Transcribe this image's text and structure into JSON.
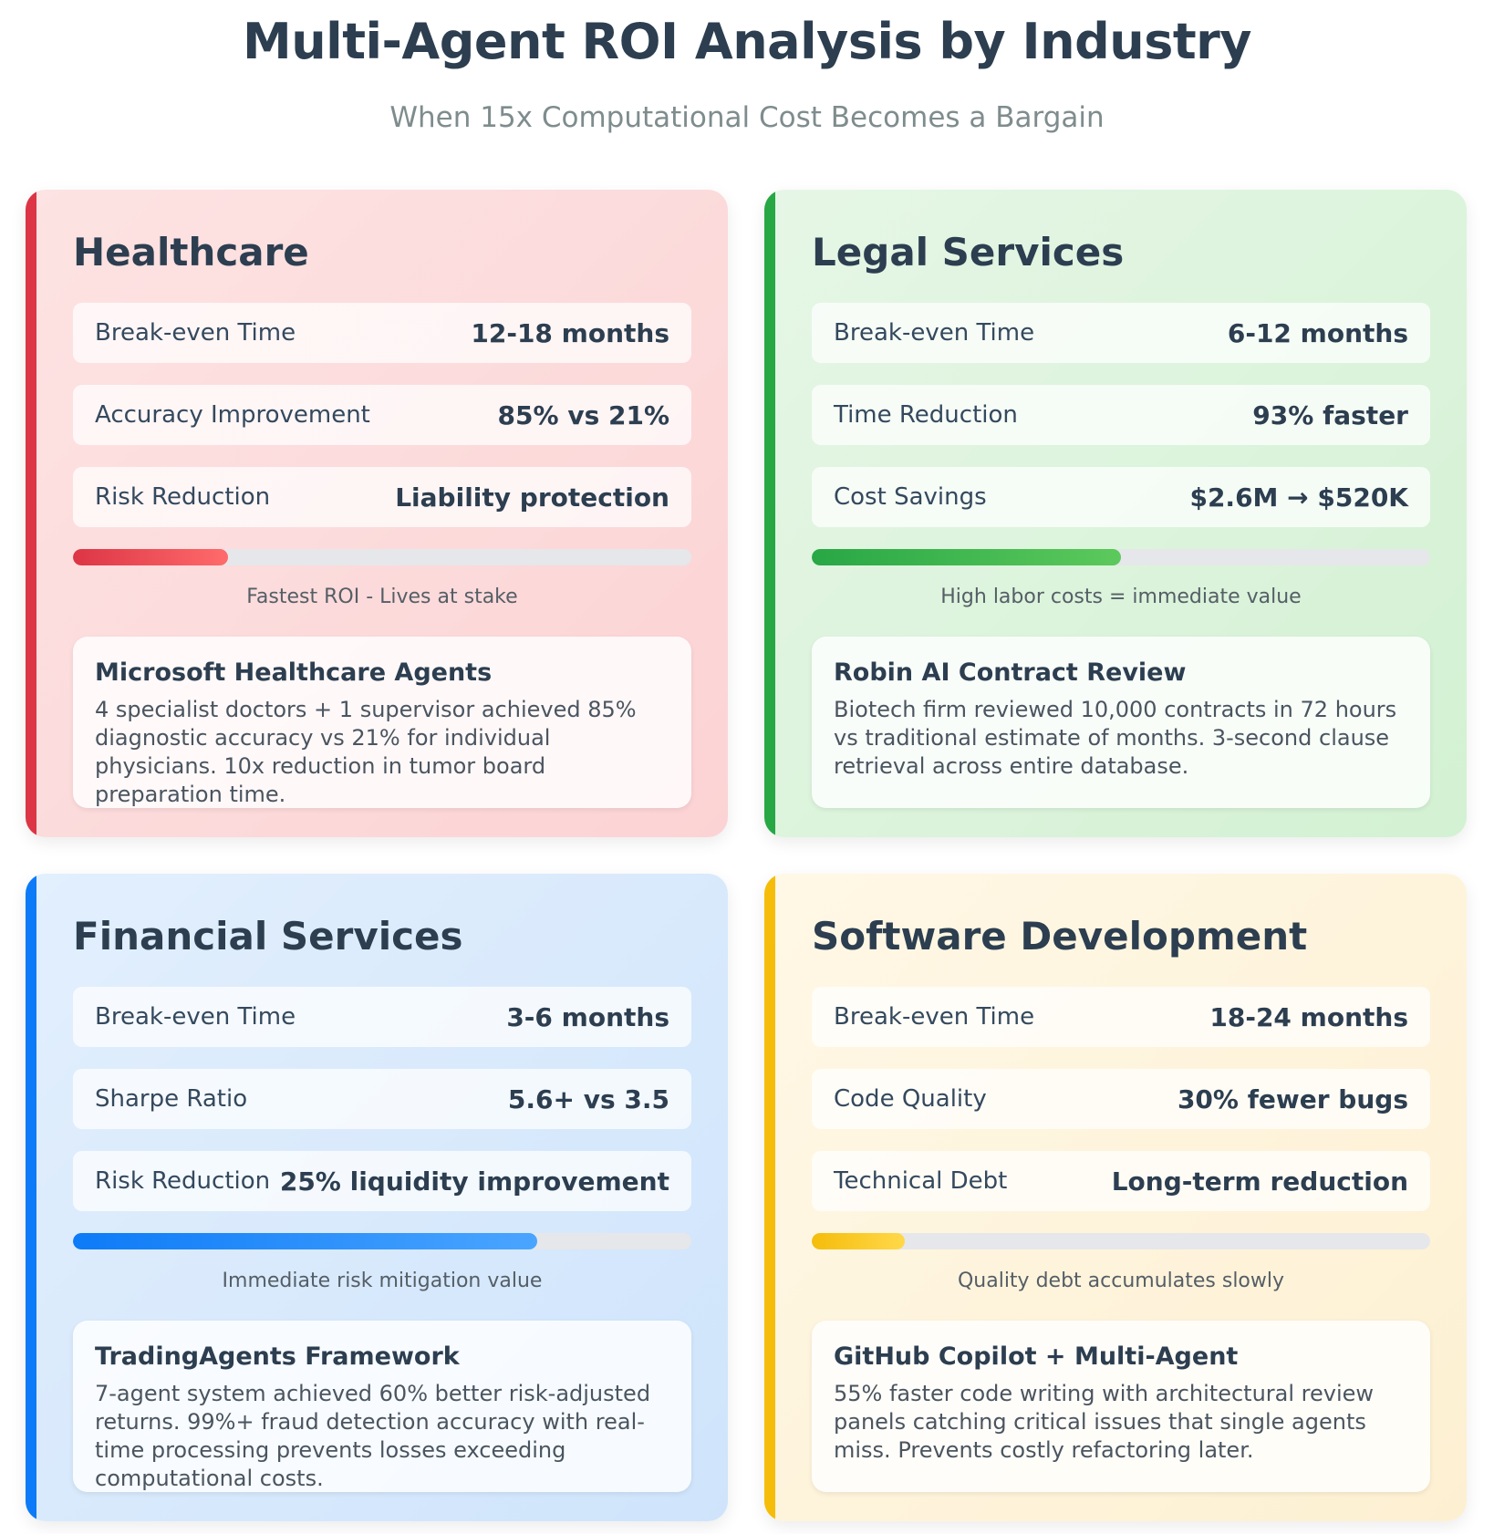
{
  "header": {
    "title": "Multi-Agent ROI Analysis by Industry",
    "subtitle": "When 15x Computational Cost Becomes a Bargain"
  },
  "cards": [
    {
      "id": "healthcare",
      "title": "Healthcare",
      "accent_color": "#dc3545",
      "metrics": [
        {
          "label": "Break-even Time",
          "value": "12-18 months"
        },
        {
          "label": "Accuracy Improvement",
          "value": "85% vs 21%"
        },
        {
          "label": "Risk Reduction",
          "value": "Liability protection"
        }
      ],
      "progress_percent": 25,
      "progress_caption": "Fastest ROI - Lives at stake",
      "case_title": "Microsoft Healthcare Agents",
      "case_text": "4 specialist doctors + 1 supervisor achieved 85% diagnostic accuracy vs 21% for individual physicians. 10x reduction in tumor board preparation time."
    },
    {
      "id": "legal",
      "title": "Legal Services",
      "accent_color": "#28a745",
      "metrics": [
        {
          "label": "Break-even Time",
          "value": "6-12 months"
        },
        {
          "label": "Time Reduction",
          "value": "93% faster"
        },
        {
          "label": "Cost Savings",
          "value": "$2.6M → $520K"
        }
      ],
      "progress_percent": 50,
      "progress_caption": "High labor costs = immediate value",
      "case_title": "Robin AI Contract Review",
      "case_text": "Biotech firm reviewed 10,000 contracts in 72 hours vs traditional estimate of months. 3-second clause retrieval across entire database."
    },
    {
      "id": "financial",
      "title": "Financial Services",
      "accent_color": "#0d7bf7",
      "metrics": [
        {
          "label": "Break-even Time",
          "value": "3-6 months"
        },
        {
          "label": "Sharpe Ratio",
          "value": "5.6+ vs 3.5"
        },
        {
          "label": "Risk Reduction",
          "value": "25% liquidity improvement"
        }
      ],
      "progress_percent": 75,
      "progress_caption": "Immediate risk mitigation value",
      "case_title": "TradingAgents Framework",
      "case_text": "7-agent system achieved 60% better risk-adjusted returns. 99%+ fraud detection accuracy with real-time processing prevents losses exceeding computational costs."
    },
    {
      "id": "software",
      "title": "Software Development",
      "accent_color": "#f5bd0a",
      "metrics": [
        {
          "label": "Break-even Time",
          "value": "18-24 months"
        },
        {
          "label": "Code Quality",
          "value": "30% fewer bugs"
        },
        {
          "label": "Technical Debt",
          "value": "Long-term reduction"
        }
      ],
      "progress_percent": 15,
      "progress_caption": "Quality debt accumulates slowly",
      "case_title": "GitHub Copilot + Multi-Agent",
      "case_text": "55% faster code writing with architectural review panels catching critical issues that single agents miss. Prevents costly refactoring later."
    }
  ]
}
